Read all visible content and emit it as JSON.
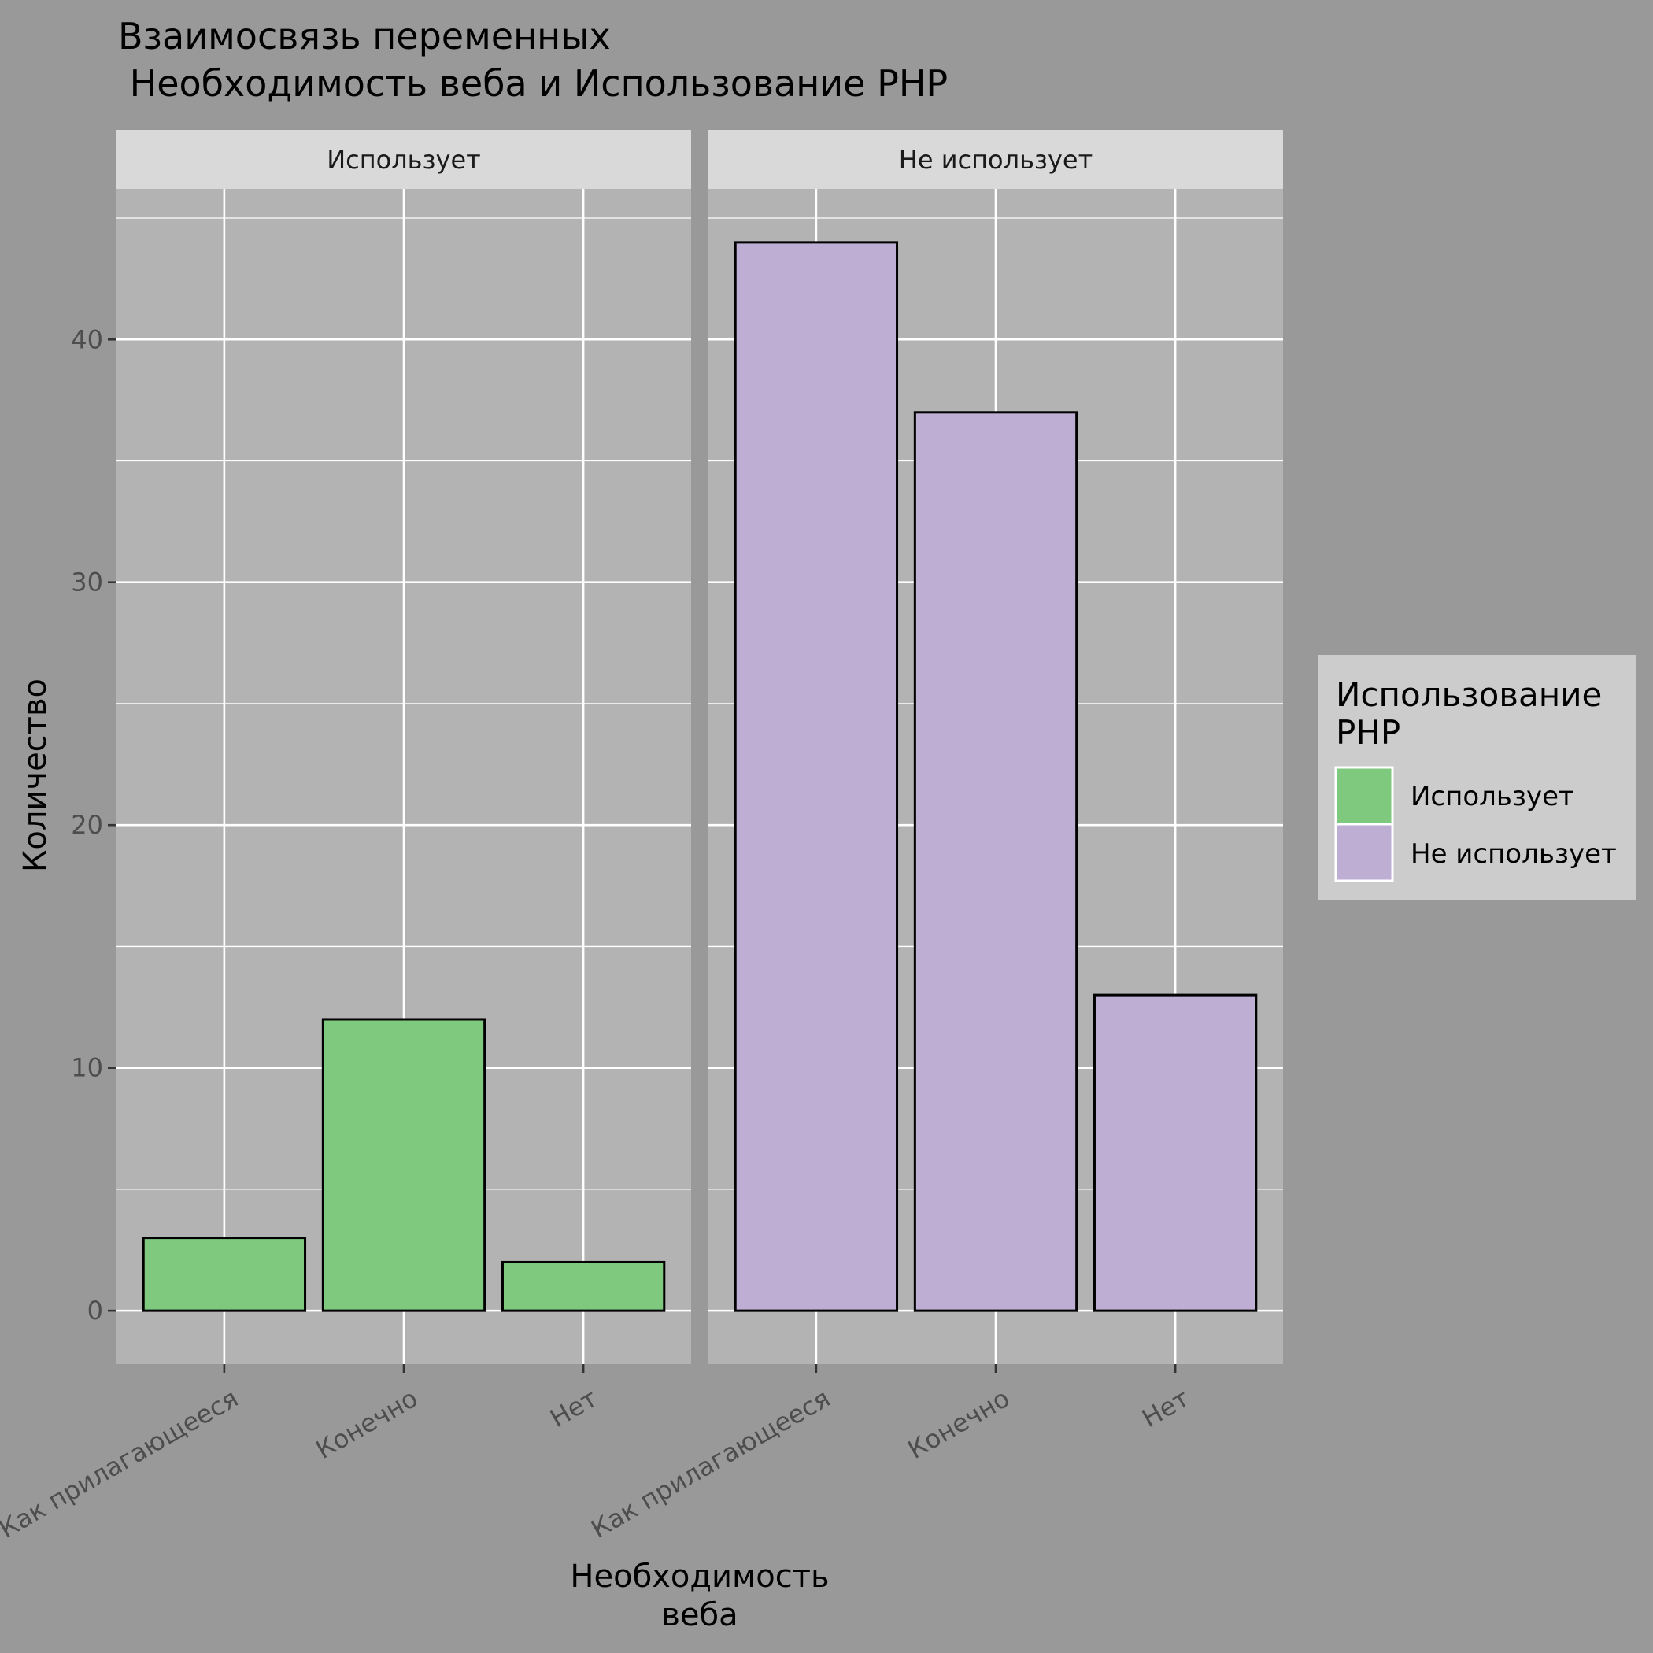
{
  "chart_data": {
    "type": "bar",
    "title_lines": [
      "Взаимосвязь переменных",
      " Необходимость веба и Использование PHP"
    ],
    "xlabel_lines": [
      "Необходимость",
      "веба"
    ],
    "ylabel": "Количество",
    "categories": [
      "Как прилагающееся",
      "Конечно",
      "Нет"
    ],
    "ylim": [
      -2.2,
      46.2
    ],
    "y_ticks": [
      0,
      10,
      20,
      30,
      40
    ],
    "y_tick_labels": [
      "0",
      "10",
      "20",
      "30",
      "40"
    ],
    "grid": true,
    "facets": [
      {
        "label": "Использует",
        "series": "Использует",
        "values": [
          3,
          12,
          2
        ]
      },
      {
        "label": "Не использует",
        "series": "Не использует",
        "values": [
          44,
          37,
          13
        ]
      }
    ],
    "legend": {
      "title_lines": [
        "Использование",
        "PHP"
      ],
      "position": "right",
      "items": [
        {
          "label": "Использует",
          "color": "#7fc97f"
        },
        {
          "label": "Не использует",
          "color": "#beaed4"
        }
      ]
    },
    "colors": {
      "Использует": "#7fc97f",
      "Не использует": "#beaed4",
      "panel_background": "#b3b3b3",
      "strip_background": "#d9d9d9",
      "plot_background": "#999999",
      "legend_background": "#cccccc"
    }
  }
}
